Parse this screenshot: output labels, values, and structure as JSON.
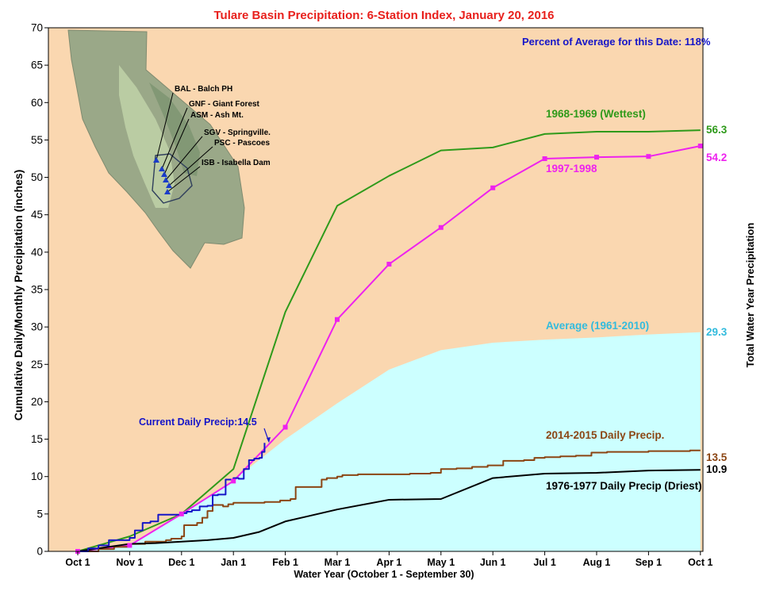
{
  "chart_data": {
    "type": "line",
    "title": "Tulare Basin Precipitation: 6-Station Index, January 20, 2016",
    "xlabel": "Water Year (October 1 - September 30)",
    "ylabel": "Cumulative Daily/Monthly Precipitation (inches)",
    "ylabel_right": "Total Water Year Precipitation",
    "ylim": [
      0,
      70
    ],
    "yticks": [
      0,
      5,
      10,
      15,
      20,
      25,
      30,
      35,
      40,
      45,
      50,
      55,
      60,
      65,
      70
    ],
    "xlim": [
      0,
      12
    ],
    "xticks": [
      {
        "x": 0,
        "label": "Oct 1"
      },
      {
        "x": 1,
        "label": "Nov 1"
      },
      {
        "x": 2,
        "label": "Dec 1"
      },
      {
        "x": 3,
        "label": "Jan 1"
      },
      {
        "x": 4,
        "label": "Feb 1"
      },
      {
        "x": 5,
        "label": "Mar 1"
      },
      {
        "x": 6,
        "label": "Apr 1"
      },
      {
        "x": 7,
        "label": "May 1"
      },
      {
        "x": 8,
        "label": "Jun 1"
      },
      {
        "x": 9,
        "label": "Jul 1"
      },
      {
        "x": 10,
        "label": "Aug 1"
      },
      {
        "x": 11,
        "label": "Sep 1"
      },
      {
        "x": 12,
        "label": "Oct 1"
      }
    ],
    "percent_of_average": "Percent of Average for this Date: 118%",
    "series": [
      {
        "name": "Average (1961-2010)",
        "color": "#ccffff",
        "label_color": "#33bbdd",
        "final_label": "29.3",
        "style": "area",
        "x": [
          0,
          1,
          2,
          3,
          4,
          5,
          6,
          7,
          8,
          9,
          10,
          11,
          12
        ],
        "y": [
          0,
          1.0,
          4.8,
          9.5,
          15.0,
          19.8,
          24.3,
          26.9,
          27.9,
          28.3,
          28.6,
          29.0,
          29.3
        ]
      },
      {
        "name": "1968-1969 (Wettest)",
        "color": "#2e9a1a",
        "final_label": "56.3",
        "style": "line",
        "x": [
          0,
          1,
          2,
          3,
          4,
          5,
          6,
          7,
          8,
          9,
          10,
          11,
          12
        ],
        "y": [
          0,
          2.0,
          5.0,
          11.0,
          32.0,
          46.2,
          50.2,
          53.6,
          54.0,
          55.8,
          56.1,
          56.1,
          56.3
        ]
      },
      {
        "name": "1997-1998",
        "color": "#ee22ee",
        "final_label": "54.2",
        "style": "markers",
        "x": [
          0,
          1,
          2,
          3,
          4,
          5,
          6,
          7,
          8,
          9,
          10,
          11,
          12
        ],
        "y": [
          0,
          0.8,
          5.0,
          9.4,
          16.6,
          31.0,
          38.4,
          43.3,
          48.6,
          52.5,
          52.7,
          52.8,
          54.2
        ]
      },
      {
        "name": "2014-2015 Daily Precip.",
        "color": "#8b4513",
        "final_label": "13.5",
        "style": "step",
        "x": [
          0,
          0.4,
          0.7,
          1.0,
          1.3,
          1.7,
          1.8,
          2.0,
          2.05,
          2.3,
          2.4,
          2.5,
          2.6,
          2.8,
          2.9,
          3.0,
          3.3,
          3.6,
          3.9,
          4.1,
          4.2,
          4.5,
          4.7,
          4.8,
          5.0,
          5.1,
          5.4,
          6.0,
          6.4,
          6.8,
          7.0,
          7.3,
          7.6,
          7.9,
          8.2,
          8.6,
          8.8,
          9.0,
          9.3,
          9.6,
          9.9,
          10.2,
          10.6,
          11.0,
          11.4,
          11.8,
          12.0
        ],
        "y": [
          0,
          0.3,
          0.6,
          1.0,
          1.3,
          1.5,
          1.7,
          2.0,
          3.5,
          3.8,
          4.5,
          5.4,
          6.2,
          6.0,
          6.3,
          6.5,
          6.5,
          6.6,
          6.8,
          7.0,
          8.6,
          8.6,
          9.6,
          9.8,
          10.0,
          10.2,
          10.3,
          10.3,
          10.4,
          10.5,
          11.0,
          11.1,
          11.3,
          11.5,
          12.1,
          12.2,
          12.5,
          12.6,
          12.7,
          12.8,
          13.2,
          13.3,
          13.3,
          13.4,
          13.4,
          13.5,
          13.5
        ]
      },
      {
        "name": "1976-1977 Daily Precip (Driest)",
        "color": "#000000",
        "final_label": "10.9",
        "style": "line",
        "x": [
          0,
          0.5,
          1,
          1.5,
          2,
          2.5,
          3,
          3.5,
          4,
          5,
          6,
          7,
          8,
          9,
          10,
          11,
          12
        ],
        "y": [
          0,
          0.5,
          1.0,
          1.1,
          1.3,
          1.5,
          1.8,
          2.6,
          4.0,
          5.6,
          6.9,
          7.0,
          9.8,
          10.4,
          10.5,
          10.8,
          10.9
        ]
      },
      {
        "name": "Current Daily Precip:14.5",
        "color": "#1515c8",
        "style": "step",
        "x": [
          0,
          0.2,
          0.4,
          0.6,
          0.8,
          1.0,
          1.1,
          1.25,
          1.4,
          1.55,
          1.65,
          1.8,
          2.0,
          2.1,
          2.2,
          2.35,
          2.5,
          2.6,
          2.7,
          2.85,
          3.0,
          3.1,
          3.2,
          3.3,
          3.4,
          3.5,
          3.55,
          3.6
        ],
        "y": [
          0,
          0.4,
          0.8,
          1.5,
          1.5,
          1.8,
          2.8,
          3.8,
          4.0,
          4.9,
          4.9,
          4.9,
          5.1,
          5.3,
          5.5,
          6.0,
          6.1,
          7.5,
          7.6,
          9.6,
          9.8,
          9.7,
          11.0,
          12.2,
          12.4,
          12.5,
          13.3,
          14.5
        ]
      }
    ],
    "map_labels": [
      "BAL - Balch PH",
      "GNF - Giant Forest",
      "ASM - Ash Mt.",
      "SGV - Springville.",
      "PSC - Pascoes",
      "ISB - Isabella Dam"
    ]
  },
  "colors": {
    "plot_background": "#fad7b0",
    "title": "#e8201c",
    "percent_text": "#1515c8"
  }
}
